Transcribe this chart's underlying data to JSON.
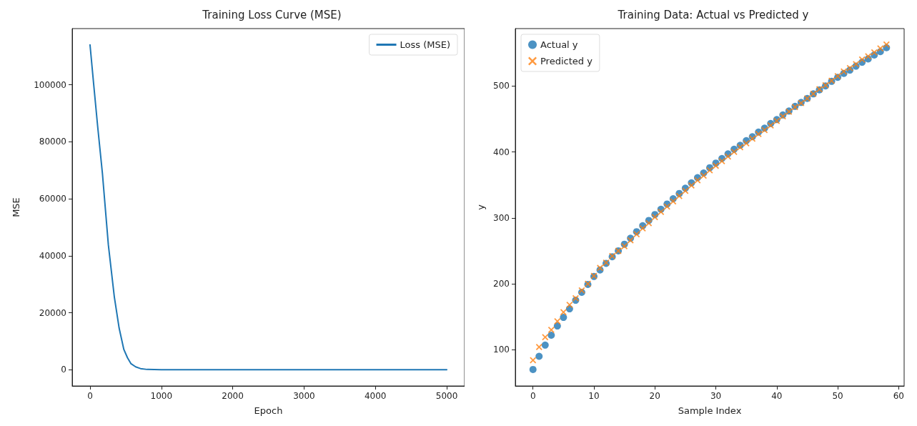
{
  "chart_data": [
    {
      "type": "line",
      "title": "Training Loss Curve (MSE)",
      "xlabel": "Epoch",
      "ylabel": "MSE",
      "xlim": [
        -250,
        5250
      ],
      "ylim": [
        -5700,
        119700
      ],
      "xticks": [
        0,
        1000,
        2000,
        3000,
        4000,
        5000
      ],
      "yticks": [
        0,
        20000,
        40000,
        60000,
        80000,
        100000
      ],
      "grid": false,
      "legend": "top right",
      "marker": "none",
      "line_style": "solid",
      "series": [
        {
          "name": "Loss (MSE)",
          "color": "#1f77b4",
          "x": [
            0,
            50,
            107,
            174,
            257,
            341,
            408,
            474,
            525,
            575,
            640,
            708,
            800,
            1000,
            2000,
            3000,
            4000,
            5000
          ],
          "values": [
            114000,
            100500,
            85400,
            68800,
            43800,
            25500,
            14600,
            7100,
            4200,
            2100,
            1000,
            400,
            100,
            0,
            0,
            0,
            0,
            0
          ]
        }
      ]
    },
    {
      "type": "scatter",
      "title": "Training Data: Actual vs Predicted y",
      "xlabel": "Sample Index",
      "ylabel": "y",
      "xlim": [
        -2.9,
        60.9
      ],
      "ylim": [
        45,
        587
      ],
      "xticks": [
        0,
        10,
        20,
        30,
        40,
        50,
        60
      ],
      "yticks": [
        100,
        200,
        300,
        400,
        500
      ],
      "grid": false,
      "legend": "top left",
      "x": [
        0,
        1,
        2,
        3,
        4,
        5,
        6,
        7,
        8,
        9,
        10,
        11,
        12,
        13,
        14,
        15,
        16,
        17,
        18,
        19,
        20,
        21,
        22,
        23,
        24,
        25,
        26,
        27,
        28,
        29,
        30,
        31,
        32,
        33,
        34,
        35,
        36,
        37,
        38,
        39,
        40,
        41,
        42,
        43,
        44,
        45,
        46,
        47,
        48,
        49,
        50,
        51,
        52,
        53,
        54,
        55,
        56,
        57,
        58
      ],
      "series": [
        {
          "name": "Actual y",
          "color": "#1f77b4",
          "marker": "circle",
          "values": [
            70,
            90,
            107,
            122,
            136,
            149,
            162,
            175,
            187,
            199,
            211,
            221,
            231,
            241,
            250,
            260,
            269,
            279,
            288,
            296,
            305,
            313,
            321,
            329,
            337,
            345,
            353,
            361,
            368,
            376,
            383,
            390,
            397,
            404,
            410,
            417,
            423,
            430,
            436,
            443,
            449,
            456,
            462,
            469,
            475,
            481,
            488,
            494,
            500,
            507,
            513,
            519,
            524,
            530,
            536,
            541,
            547,
            552,
            558
          ]
        },
        {
          "name": "Predicted y",
          "color": "#ff7f0e",
          "marker": "cross",
          "values": [
            84,
            104,
            119,
            130,
            143,
            157,
            168,
            178,
            190,
            200,
            212,
            224,
            232,
            242,
            250,
            257,
            266,
            275,
            284,
            292,
            301,
            309,
            317,
            325,
            333,
            341,
            349,
            357,
            364,
            372,
            379,
            386,
            393,
            400,
            407,
            413,
            420,
            427,
            433,
            440,
            447,
            454,
            461,
            468,
            474,
            481,
            488,
            495,
            501,
            508,
            515,
            522,
            527,
            533,
            540,
            545,
            551,
            557,
            563
          ]
        }
      ]
    }
  ]
}
